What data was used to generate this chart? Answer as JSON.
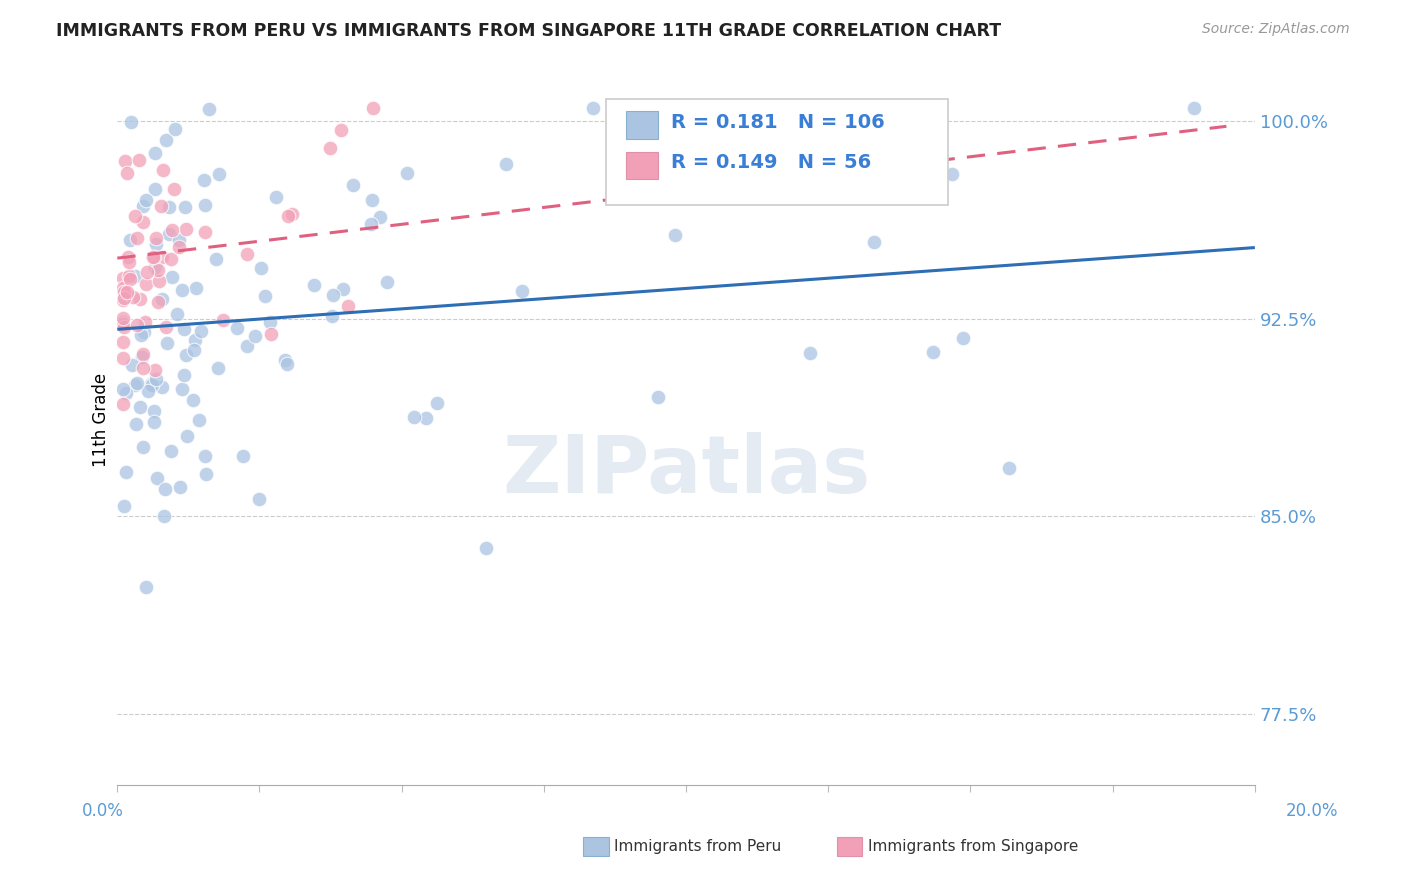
{
  "title": "IMMIGRANTS FROM PERU VS IMMIGRANTS FROM SINGAPORE 11TH GRADE CORRELATION CHART",
  "source": "Source: ZipAtlas.com",
  "ylabel": "11th Grade",
  "ytick_labels": [
    "77.5%",
    "85.0%",
    "92.5%",
    "100.0%"
  ],
  "ytick_values": [
    0.775,
    0.85,
    0.925,
    1.0
  ],
  "xlim": [
    0.0,
    0.2
  ],
  "ylim": [
    0.748,
    1.025
  ],
  "R_peru": 0.181,
  "N_peru": 106,
  "R_singapore": 0.149,
  "N_singapore": 56,
  "color_peru": "#aac4e2",
  "color_singapore": "#f2a0b8",
  "color_trend_peru": "#2d6eb5",
  "color_trend_singapore": "#e06080",
  "legend_label_peru": "Immigrants from Peru",
  "legend_label_singapore": "Immigrants from Singapore",
  "watermark": "ZIPatlas",
  "blue_line_x": [
    0.0,
    0.2
  ],
  "blue_line_y": [
    0.921,
    0.952
  ],
  "pink_line_x": [
    0.0,
    0.195
  ],
  "pink_line_y": [
    0.948,
    0.998
  ]
}
